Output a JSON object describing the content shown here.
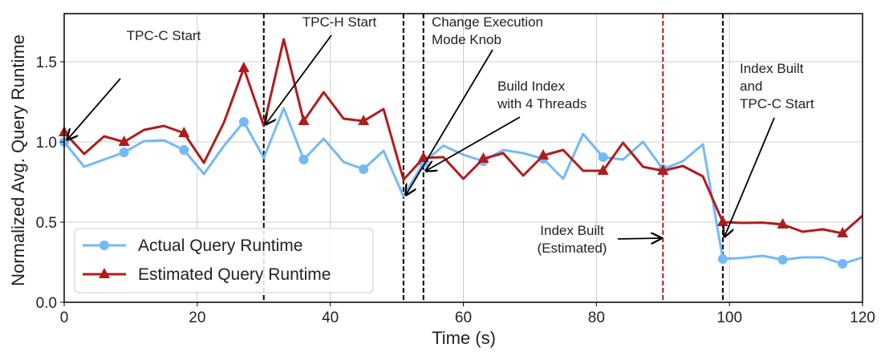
{
  "chart_data": {
    "type": "line",
    "title": "",
    "xlabel": "Time (s)",
    "ylabel": "Normalized Avg. Query Runtime",
    "xlim": [
      0,
      120
    ],
    "ylim": [
      0,
      1.8
    ],
    "xticks": [
      0,
      20,
      40,
      60,
      80,
      100,
      120
    ],
    "yticks": [
      0.0,
      0.5,
      1.0,
      1.5
    ],
    "ytick_labels": [
      "0.0",
      "0.5",
      "1.0",
      "1.5"
    ],
    "grid": true,
    "legend_position": "bottom-left",
    "x": [
      0,
      3,
      6,
      9,
      12,
      15,
      18,
      21,
      24,
      27,
      30,
      33,
      36,
      39,
      42,
      45,
      48,
      51,
      54,
      57,
      60,
      63,
      66,
      69,
      72,
      75,
      78,
      81,
      84,
      87,
      90,
      93,
      96,
      99,
      102,
      105,
      108,
      111,
      114,
      117,
      120
    ],
    "series": [
      {
        "name": "Actual Query Runtime",
        "color": "#74b9f5",
        "marker": "circle",
        "marker_every_s": 9,
        "values": [
          1.0,
          0.845,
          0.89,
          0.935,
          1.005,
          1.01,
          0.95,
          0.8,
          0.975,
          1.125,
          0.9,
          1.21,
          0.89,
          1.02,
          0.875,
          0.83,
          0.945,
          0.66,
          0.87,
          0.977,
          0.92,
          0.88,
          0.95,
          0.93,
          0.895,
          0.77,
          1.05,
          0.905,
          0.89,
          1.0,
          0.83,
          0.88,
          0.985,
          0.27,
          0.277,
          0.29,
          0.265,
          0.28,
          0.28,
          0.24,
          0.28
        ]
      },
      {
        "name": "Estimated Query Runtime",
        "color": "#b01c1c",
        "marker": "triangle",
        "marker_every_s": 9,
        "values": [
          1.06,
          0.925,
          1.035,
          1.0,
          1.075,
          1.1,
          1.055,
          0.87,
          1.12,
          1.46,
          1.1,
          1.64,
          1.13,
          1.31,
          1.145,
          1.13,
          1.205,
          0.765,
          0.9,
          0.905,
          0.77,
          0.895,
          0.93,
          0.79,
          0.915,
          0.95,
          0.82,
          0.82,
          0.995,
          0.845,
          0.82,
          0.85,
          0.785,
          0.5,
          0.495,
          0.497,
          0.485,
          0.44,
          0.455,
          0.43,
          0.54
        ]
      }
    ],
    "vertical_lines": [
      {
        "x": 30,
        "color": "#000000"
      },
      {
        "x": 51,
        "color": "#000000"
      },
      {
        "x": 54,
        "color": "#000000"
      },
      {
        "x": 90,
        "color": "#b01c1c"
      },
      {
        "x": 99,
        "color": "#000000"
      }
    ],
    "annotations": [
      {
        "lines": [
          "TPC-C Start"
        ],
        "target_x": 0,
        "target_y": 1.0
      },
      {
        "lines": [
          "TPC-H Start"
        ],
        "target_x": 30,
        "target_y": 1.1
      },
      {
        "lines": [
          "Change Execution",
          "Mode Knob"
        ],
        "target_x": 51,
        "target_y": 0.66
      },
      {
        "lines": [
          "Build Index",
          "with 4 Threads"
        ],
        "target_x": 54,
        "target_y": 0.81
      },
      {
        "lines": [
          "Index Built",
          "(Estimated)"
        ],
        "target_x": 90,
        "target_y": 0.4
      },
      {
        "lines": [
          "Index Built",
          "and",
          "TPC-C Start"
        ],
        "target_x": 99,
        "target_y": 0.41
      }
    ]
  }
}
